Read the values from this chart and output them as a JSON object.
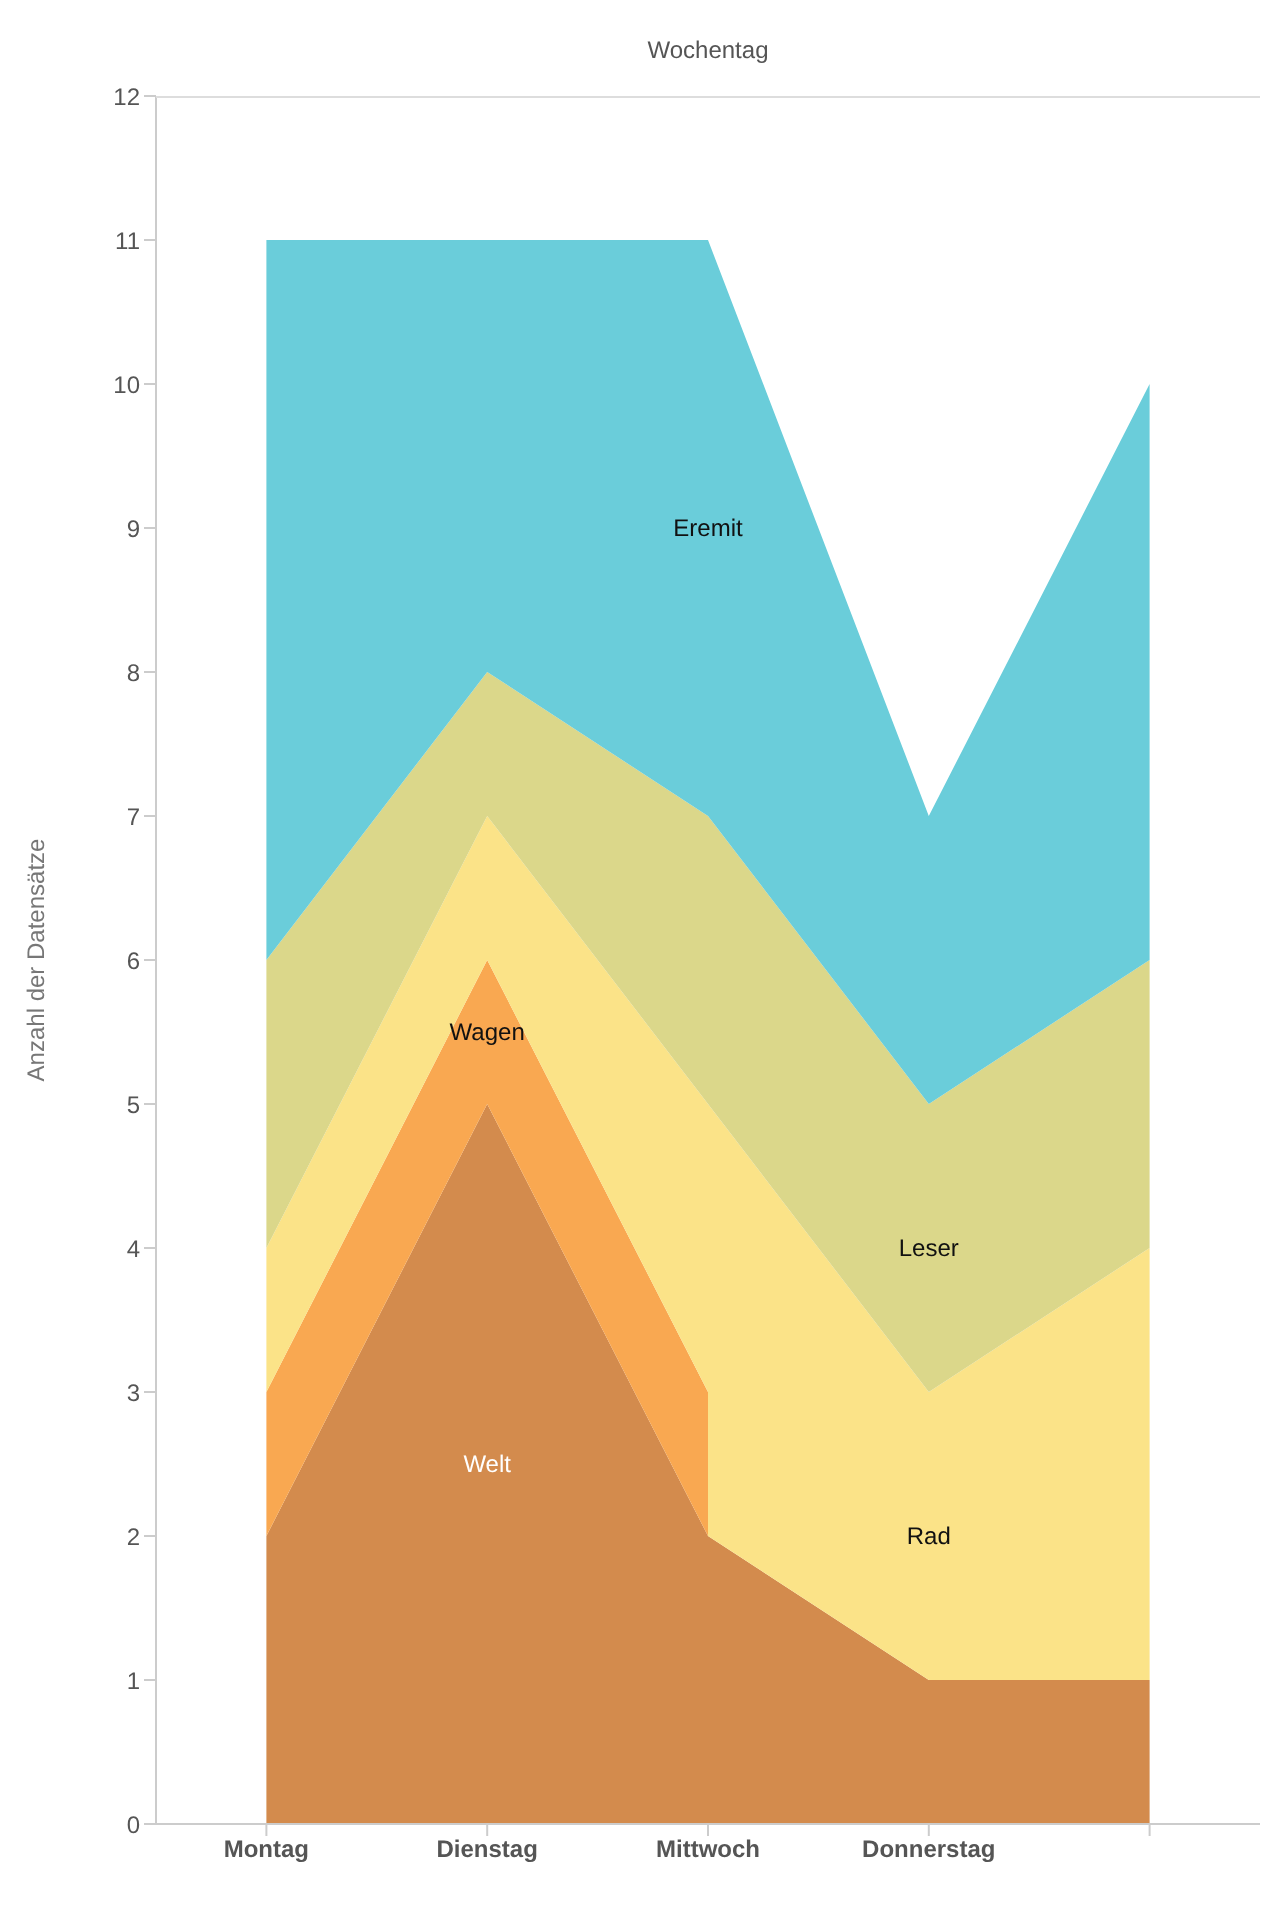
{
  "chart_data": {
    "type": "area",
    "stacked": true,
    "xlabel": "Wochentag",
    "ylabel": "Anzahl der Datensätze",
    "categories": [
      "Montag",
      "Dienstag",
      "Mittwoch",
      "Donnerstag",
      null
    ],
    "ylim": [
      0,
      12
    ],
    "yticks": [
      0,
      1,
      2,
      3,
      4,
      5,
      6,
      7,
      8,
      9,
      10,
      11,
      12
    ],
    "series": [
      {
        "name": "Welt",
        "color": "#d38b4d",
        "values": [
          2,
          5,
          2,
          1,
          1
        ]
      },
      {
        "name": "Wagen",
        "color": "#f9a851",
        "values": [
          1,
          1,
          1,
          null,
          null
        ]
      },
      {
        "name": "Rad",
        "color": "#fbe388",
        "values": [
          1,
          1,
          2,
          2,
          3
        ]
      },
      {
        "name": "Leser",
        "color": "#dbd78a",
        "values": [
          2,
          1,
          2,
          2,
          2
        ]
      },
      {
        "name": "Eremit",
        "color": "#6acdda",
        "values": [
          5,
          3,
          4,
          2,
          4
        ]
      }
    ]
  }
}
